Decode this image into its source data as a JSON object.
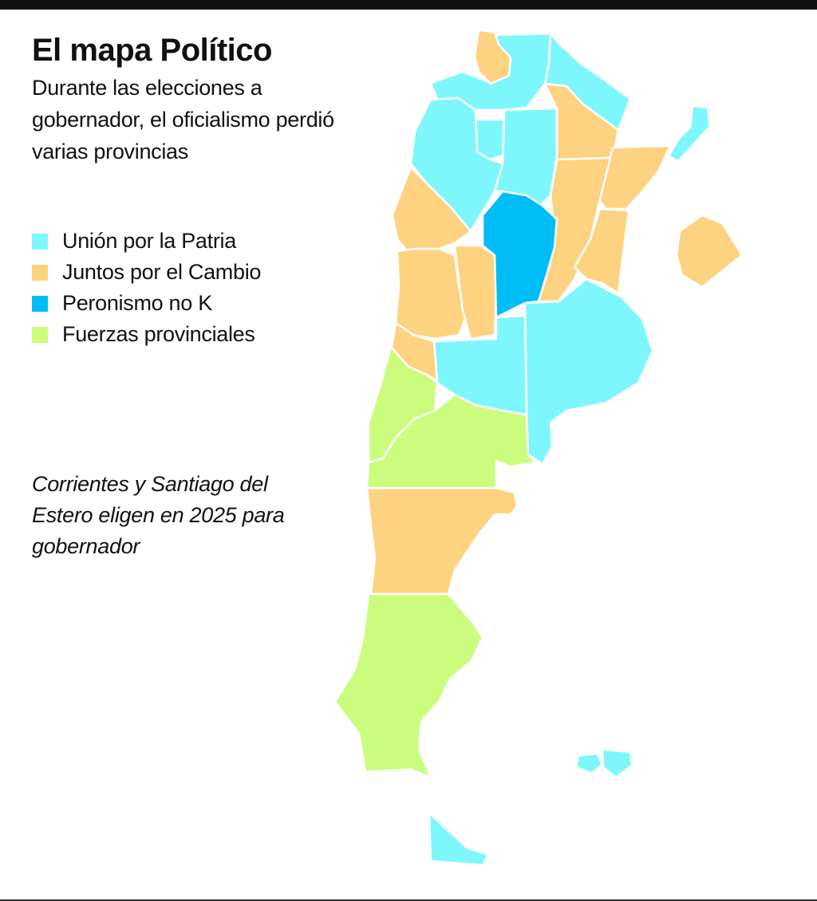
{
  "header": {
    "title": "El mapa Político",
    "subtitle": "Durante las elecciones a gobernador, el oficialismo perdió varias provincias"
  },
  "colors": {
    "union_por_la_patria": "#7ef7fc",
    "juntos_por_el_cambio": "#fdd381",
    "peronismo_no_k": "#00bdf6",
    "fuerzas_provinciales": "#ccfc7e"
  },
  "legend": [
    {
      "label": "Unión por la Patria",
      "color": "#7ef7fc"
    },
    {
      "label": "Juntos por el Cambio",
      "color": "#fdd381"
    },
    {
      "label": "Peronismo no K",
      "color": "#00bdf6"
    },
    {
      "label": "Fuerzas provinciales",
      "color": "#ccfc7e"
    }
  ],
  "note": "Corrientes y Santiago del Estero eligen en 2025 para gobernador"
}
